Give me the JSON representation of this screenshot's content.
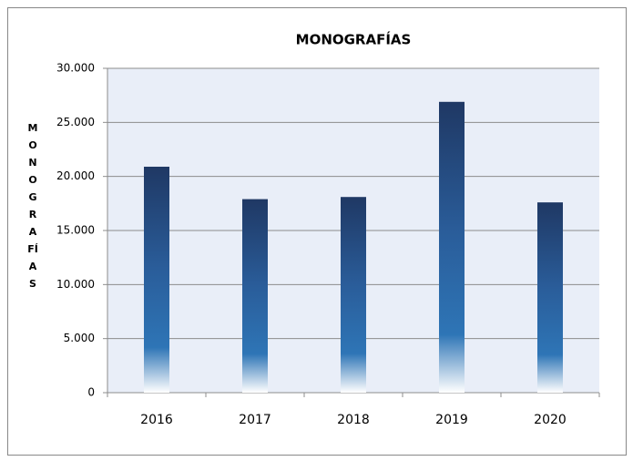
{
  "chart_data": {
    "type": "bar",
    "title": "MONOGRAFÍAS",
    "y_label": "MONOGRAFÍAS",
    "categories": [
      "2016",
      "2017",
      "2018",
      "2019",
      "2020"
    ],
    "values": [
      20900,
      17900,
      18100,
      26900,
      17600
    ],
    "color": "#1f3864",
    "ylim": [
      0,
      30000
    ],
    "yticks": [
      0,
      {
        "value": 5000,
        "label": "5.000"
      },
      {
        "value": 10000,
        "label": "10.000"
      },
      {
        "value": 15000,
        "label": "15.000"
      },
      {
        "value": 20000,
        "label": "20.000"
      },
      {
        "value": 25000,
        "label": "25.000"
      },
      {
        "value": 30000,
        "label": "30.000"
      }
    ],
    "grid": true
  }
}
